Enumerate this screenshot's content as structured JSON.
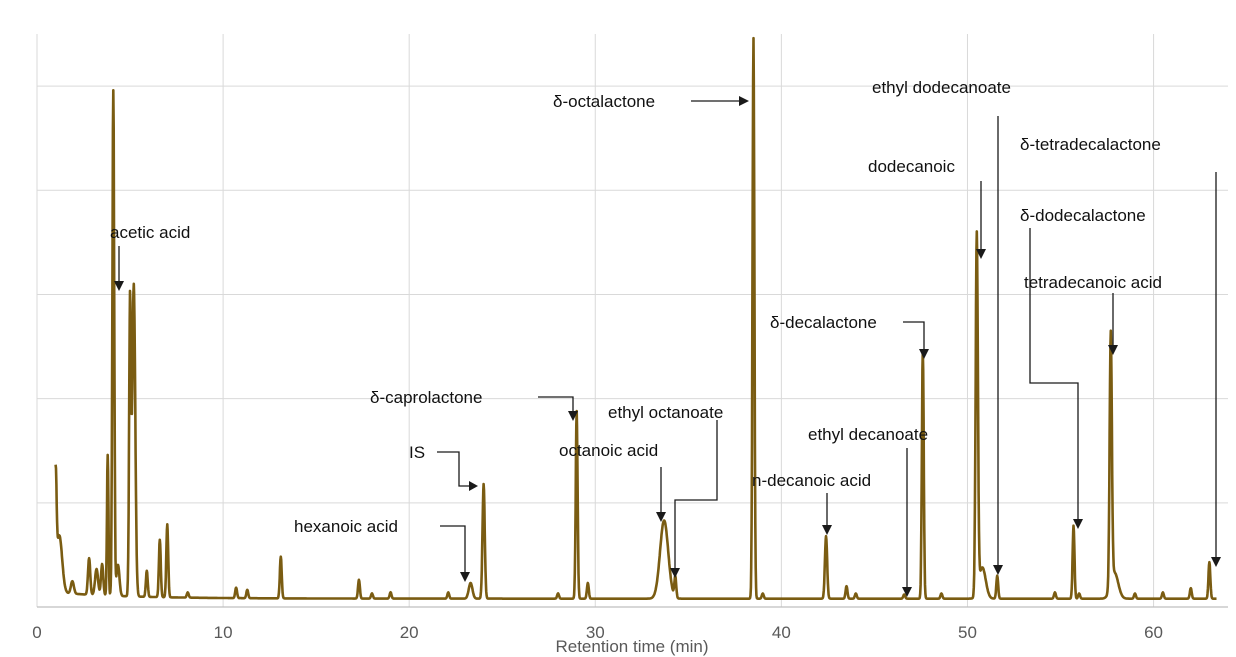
{
  "chart_data": {
    "type": "line",
    "title": "",
    "xlabel": "Retention time (min)",
    "ylabel": "",
    "xlim": [
      0,
      64
    ],
    "ylim": [
      0,
      5.5
    ],
    "x_ticks": [
      0,
      10,
      20,
      30,
      40,
      50,
      60
    ],
    "y_grid": [
      0,
      1,
      2,
      3,
      4,
      5
    ],
    "y_tick_labels_shown": false,
    "grid": true,
    "line_color": "#7a5c12",
    "baseline": 0.08,
    "peaks": [
      {
        "x": 1.0,
        "h": 1.0,
        "w": 0.05
      },
      {
        "x": 1.2,
        "h": 0.55,
        "w": 0.15
      },
      {
        "x": 1.9,
        "h": 0.12,
        "w": 0.08
      },
      {
        "x": 2.8,
        "h": 0.35,
        "w": 0.06
      },
      {
        "x": 3.2,
        "h": 0.25,
        "w": 0.08
      },
      {
        "x": 3.5,
        "h": 0.3,
        "w": 0.06
      },
      {
        "x": 3.8,
        "h": 1.35,
        "w": 0.04
      },
      {
        "x": 4.1,
        "h": 4.85,
        "w": 0.05
      },
      {
        "x": 4.35,
        "h": 0.3,
        "w": 0.08
      },
      {
        "x": 5.0,
        "h": 2.8,
        "w": 0.05
      },
      {
        "x": 5.2,
        "h": 3.0,
        "w": 0.08
      },
      {
        "x": 5.9,
        "h": 0.25,
        "w": 0.05
      },
      {
        "x": 6.6,
        "h": 0.55,
        "w": 0.05
      },
      {
        "x": 7.0,
        "h": 0.7,
        "w": 0.05
      },
      {
        "x": 8.1,
        "h": 0.05,
        "w": 0.05
      },
      {
        "x": 10.7,
        "h": 0.1,
        "w": 0.05
      },
      {
        "x": 11.3,
        "h": 0.08,
        "w": 0.05
      },
      {
        "x": 13.1,
        "h": 0.4,
        "w": 0.05
      },
      {
        "x": 17.3,
        "h": 0.18,
        "w": 0.05
      },
      {
        "x": 18.0,
        "h": 0.05,
        "w": 0.05
      },
      {
        "x": 19.0,
        "h": 0.06,
        "w": 0.05
      },
      {
        "x": 22.1,
        "h": 0.06,
        "w": 0.05
      },
      {
        "x": 23.3,
        "h": 0.15,
        "w": 0.1
      },
      {
        "x": 24.0,
        "h": 1.1,
        "w": 0.06
      },
      {
        "x": 28.0,
        "h": 0.05,
        "w": 0.05
      },
      {
        "x": 29.0,
        "h": 1.8,
        "w": 0.05
      },
      {
        "x": 29.6,
        "h": 0.15,
        "w": 0.05
      },
      {
        "x": 33.7,
        "h": 0.75,
        "w": 0.22
      },
      {
        "x": 34.3,
        "h": 0.2,
        "w": 0.05
      },
      {
        "x": 38.5,
        "h": 5.38,
        "w": 0.05
      },
      {
        "x": 39.0,
        "h": 0.05,
        "w": 0.05
      },
      {
        "x": 42.4,
        "h": 0.6,
        "w": 0.06
      },
      {
        "x": 43.5,
        "h": 0.12,
        "w": 0.05
      },
      {
        "x": 44.0,
        "h": 0.05,
        "w": 0.05
      },
      {
        "x": 46.6,
        "h": 0.04,
        "w": 0.05
      },
      {
        "x": 47.6,
        "h": 2.38,
        "w": 0.05
      },
      {
        "x": 48.6,
        "h": 0.05,
        "w": 0.05
      },
      {
        "x": 50.5,
        "h": 3.45,
        "w": 0.06
      },
      {
        "x": 50.8,
        "h": 0.3,
        "w": 0.18
      },
      {
        "x": 51.6,
        "h": 0.22,
        "w": 0.05
      },
      {
        "x": 54.7,
        "h": 0.06,
        "w": 0.05
      },
      {
        "x": 55.7,
        "h": 0.7,
        "w": 0.05
      },
      {
        "x": 56.0,
        "h": 0.05,
        "w": 0.05
      },
      {
        "x": 57.7,
        "h": 2.42,
        "w": 0.06
      },
      {
        "x": 57.9,
        "h": 0.25,
        "w": 0.2
      },
      {
        "x": 59.0,
        "h": 0.05,
        "w": 0.05
      },
      {
        "x": 60.5,
        "h": 0.06,
        "w": 0.05
      },
      {
        "x": 62.0,
        "h": 0.1,
        "w": 0.05
      },
      {
        "x": 63.0,
        "h": 0.35,
        "w": 0.05
      }
    ],
    "annotations": [
      {
        "label": "acetic acid",
        "peak_x": 4.4
      },
      {
        "label": "hexanoic acid",
        "peak_x": 23.3
      },
      {
        "label": "IS",
        "peak_x": 24.0
      },
      {
        "label": "δ-caprolactone",
        "peak_x": 29.0
      },
      {
        "label": "octanoic acid",
        "peak_x": 33.7
      },
      {
        "label": "ethyl octanoate",
        "peak_x": 34.3
      },
      {
        "label": "δ-octalactone",
        "peak_x": 38.5
      },
      {
        "label": "n-decanoic acid",
        "peak_x": 42.4
      },
      {
        "label": "ethyl decanoate",
        "peak_x": 46.6
      },
      {
        "label": "δ-decalactone",
        "peak_x": 47.6
      },
      {
        "label": "dodecanoic",
        "peak_x": 50.5
      },
      {
        "label": "ethyl dodecanoate",
        "peak_x": 51.6
      },
      {
        "label": "δ-dodecalactone",
        "peak_x": 55.7
      },
      {
        "label": "tetradecanoic acid",
        "peak_x": 57.7
      },
      {
        "label": "δ-tetradecalactone",
        "peak_x": 63.0
      }
    ]
  }
}
